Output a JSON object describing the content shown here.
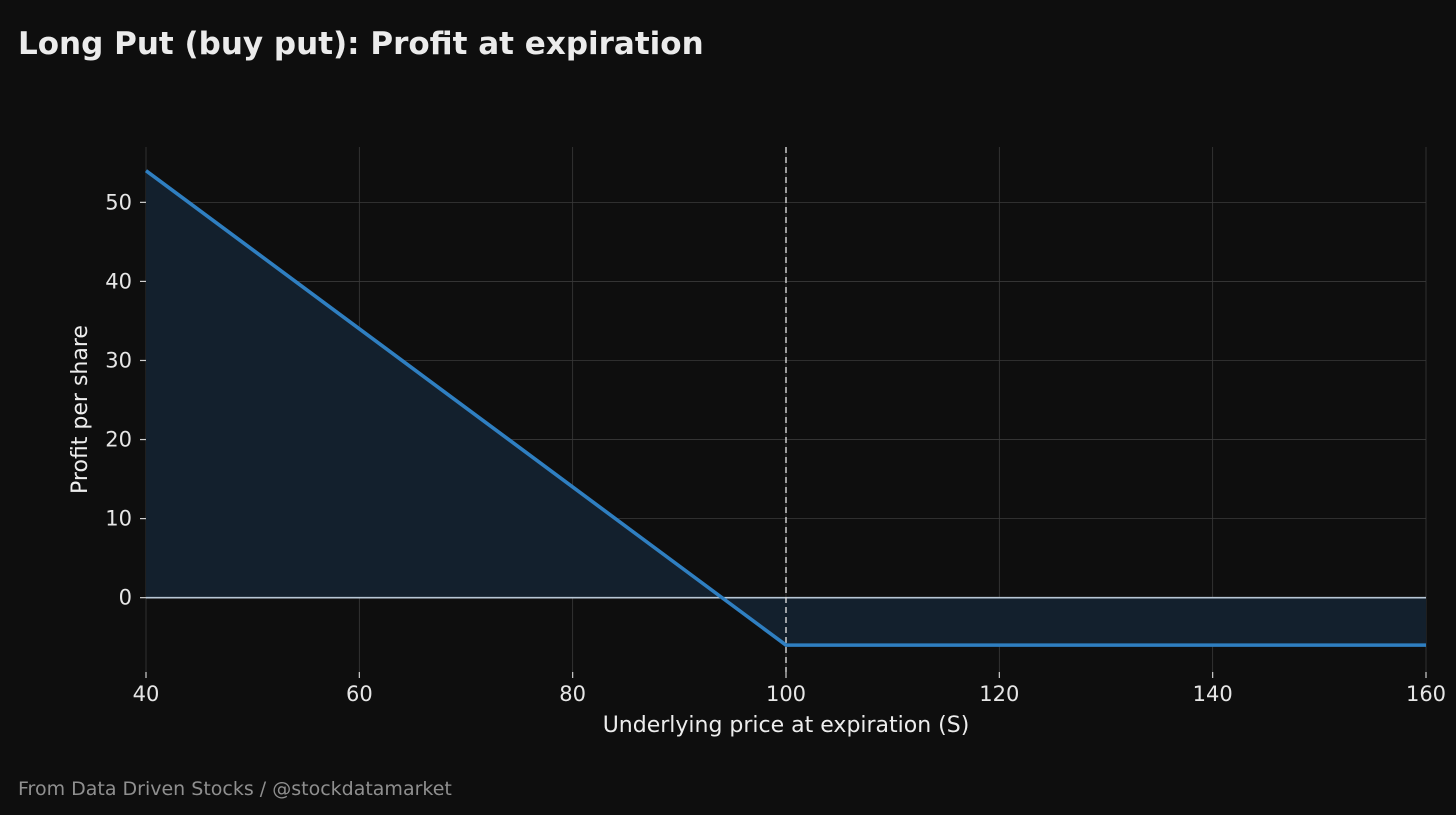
{
  "title": "Long Put (buy put): Profit at expiration",
  "footer": "From Data Driven Stocks / @stockdatamarket",
  "chart_data": {
    "type": "line",
    "title": "Long Put (buy put): Profit at expiration",
    "xlabel": "Underlying price at expiration (S)",
    "ylabel": "Profit per share",
    "xlim": [
      40,
      160
    ],
    "ylim": [
      -9.4,
      57
    ],
    "xticks": [
      40,
      60,
      80,
      100,
      120,
      140,
      160
    ],
    "yticks": [
      0,
      10,
      20,
      30,
      40,
      50
    ],
    "grid": true,
    "series": [
      {
        "x": [
          40,
          100,
          160
        ],
        "y": [
          54,
          -6,
          -6
        ]
      }
    ],
    "strike_marker": 100,
    "fill_to_zero": true,
    "colors": {
      "background": "#0e0e0e",
      "line": "#2f7fc1",
      "fill": "#13202d",
      "zero_line": "#b8c7d6",
      "strike_line": "#d9d9d9",
      "grid": "#3a3a3a"
    }
  }
}
